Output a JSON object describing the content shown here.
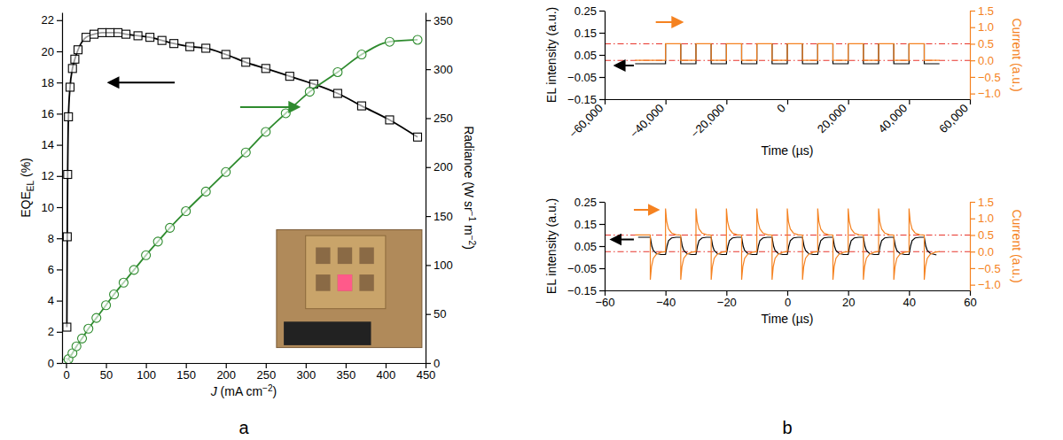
{
  "chart_data": [
    {
      "type": "scatter",
      "title": "a",
      "xlabel": "J (mA cm−2)",
      "ylabel": "EQEEL (%)",
      "y2label": "Radiance (W sr−1 m−2)",
      "xlim": [
        -5,
        450
      ],
      "xticks": [
        0,
        50,
        100,
        150,
        200,
        250,
        300,
        350,
        400,
        450
      ],
      "ylim": [
        0,
        22.5
      ],
      "yticks": [
        0,
        2,
        4,
        6,
        8,
        10,
        12,
        14,
        16,
        18,
        20,
        22
      ],
      "y2lim": [
        0,
        358
      ],
      "y2ticks": [
        0,
        50,
        100,
        150,
        200,
        250,
        300,
        350
      ],
      "grid": false,
      "series": [
        {
          "color": "#000000",
          "marker": "square",
          "line_style": "solid",
          "x": [
            1,
            1.5,
            2,
            3,
            5,
            8,
            11,
            15,
            25,
            35,
            45,
            55,
            65,
            75,
            90,
            105,
            120,
            135,
            155,
            175,
            200,
            225,
            250,
            280,
            310,
            340,
            370,
            405,
            440
          ],
          "values": [
            2.3,
            8.1,
            12.1,
            15.8,
            17.7,
            18.9,
            19.5,
            20.1,
            20.9,
            21.1,
            21.2,
            21.2,
            21.2,
            21.1,
            21.0,
            20.9,
            20.7,
            20.5,
            20.3,
            20.2,
            19.8,
            19.3,
            18.9,
            18.4,
            17.9,
            17.3,
            16.5,
            15.6,
            14.5
          ]
        },
        {
          "color": "#2e8b2e",
          "marker": "circle",
          "line_style": "solid",
          "axis": "y2",
          "x": [
            0,
            3,
            8,
            13,
            20,
            28,
            38,
            50,
            60,
            72,
            85,
            100,
            115,
            130,
            150,
            175,
            200,
            225,
            250,
            275,
            305,
            340,
            370,
            405,
            440
          ],
          "values": [
            0,
            4,
            10,
            17,
            25,
            35,
            46,
            59,
            70,
            82,
            95,
            110,
            124,
            138,
            155,
            175,
            195,
            215,
            236,
            255,
            277,
            297,
            315,
            328,
            330
          ]
        }
      ]
    },
    {
      "type": "line",
      "xlabel": "Time (µs)",
      "ylabel": "EL intensity (a.u.)",
      "y2label": "Current (a.u.)",
      "xlim": [
        -60000,
        60000
      ],
      "xticks": [
        {
          "value": -60000,
          "label": "−60,000"
        },
        {
          "value": -40000,
          "label": "−40,000"
        },
        {
          "value": -20000,
          "label": "−20,000"
        },
        0,
        {
          "value": 20000,
          "label": "20,000"
        },
        {
          "value": 40000,
          "label": "40,000"
        },
        {
          "value": 60000,
          "label": "60,000"
        }
      ],
      "ylim": [
        -0.15,
        0.25
      ],
      "yticks": [
        {
          "value": -0.15,
          "label": "−0.15"
        },
        {
          "value": -0.05,
          "label": "−0.05"
        },
        0.05,
        0.15,
        0.25
      ],
      "y2lim": [
        -1.17,
        1.5
      ],
      "y2ticks": [
        {
          "value": -1,
          "label": "−1.0"
        },
        {
          "value": -0.5,
          "label": "−0.5"
        },
        {
          "value": 0,
          "label": "0.0"
        },
        0.5,
        {
          "value": 1,
          "label": "1.0"
        },
        1.5
      ],
      "grid": false,
      "hlines": [
        {
          "value": 0.5,
          "axis": "y2",
          "color": "#e8352b",
          "line_style": "dashdot"
        },
        {
          "value": 0,
          "axis": "y2",
          "color": "#e8352b",
          "line_style": "dashdot"
        }
      ],
      "series": [
        {
          "color": "#000000",
          "marker": "none",
          "line_style": "solid",
          "x": [
            -50000,
            -40000,
            -40000,
            -35000,
            -35000,
            -30000,
            -30000,
            -25000,
            -25000,
            -20000,
            -20000,
            -15000,
            -15000,
            -10000,
            -10000,
            -5000,
            -5000,
            0,
            0,
            5000,
            5000,
            10000,
            10000,
            15000,
            15000,
            20000,
            20000,
            25000,
            25000,
            30000,
            30000,
            35000,
            35000,
            40000,
            40000,
            45000,
            45000,
            50000
          ],
          "values": [
            0.01,
            0.01,
            0.1,
            0.1,
            0.01,
            0.01,
            0.1,
            0.1,
            0.01,
            0.01,
            0.1,
            0.1,
            0.01,
            0.01,
            0.1,
            0.1,
            0.01,
            0.01,
            0.1,
            0.1,
            0.01,
            0.01,
            0.1,
            0.1,
            0.01,
            0.01,
            0.1,
            0.1,
            0.01,
            0.01,
            0.1,
            0.1,
            0.01,
            0.01,
            0.1,
            0.1,
            0.01,
            0.01
          ]
        },
        {
          "color": "#f58220",
          "marker": "none",
          "line_style": "solid",
          "axis": "y2",
          "x": [
            -50000,
            -40000,
            -40000,
            -35000,
            -35000,
            -30000,
            -30000,
            -25000,
            -25000,
            -20000,
            -20000,
            -15000,
            -15000,
            -10000,
            -10000,
            -5000,
            -5000,
            0,
            0,
            5000,
            5000,
            10000,
            10000,
            15000,
            15000,
            20000,
            20000,
            25000,
            25000,
            30000,
            30000,
            35000,
            35000,
            40000,
            40000,
            45000,
            45000,
            50000
          ],
          "values": [
            0,
            0,
            0.5,
            0.5,
            0,
            0,
            0.5,
            0.5,
            0,
            0,
            0.5,
            0.5,
            0,
            0,
            0.5,
            0.5,
            0,
            0,
            0.5,
            0.5,
            0,
            0,
            0.5,
            0.5,
            0,
            0,
            0.5,
            0.5,
            0,
            0,
            0.5,
            0.5,
            0,
            0,
            0.5,
            0.5,
            0,
            0
          ]
        }
      ]
    },
    {
      "type": "line",
      "title": "b",
      "xlabel": "Time (µs)",
      "ylabel": "EL intensity (a.u.)",
      "y2label": "Current (a.u.)",
      "xlim": [
        -60,
        60
      ],
      "xticks": [
        {
          "value": -60,
          "label": "−60"
        },
        {
          "value": -40,
          "label": "−40"
        },
        {
          "value": -20,
          "label": "−20"
        },
        0,
        20,
        40,
        60
      ],
      "ylim": [
        -0.15,
        0.25
      ],
      "yticks": [
        {
          "value": -0.15,
          "label": "−0.15"
        },
        {
          "value": -0.05,
          "label": "−0.05"
        },
        0.05,
        0.15,
        0.25
      ],
      "y2lim": [
        -1.17,
        1.5
      ],
      "y2ticks": [
        {
          "value": -1,
          "label": "−1.0"
        },
        {
          "value": -0.5,
          "label": "−0.5"
        },
        {
          "value": 0,
          "label": "0.0"
        },
        0.5,
        {
          "value": 1,
          "label": "1.0"
        },
        1.5
      ],
      "grid": false,
      "hlines": [
        {
          "value": 0.5,
          "axis": "y2",
          "color": "#e8352b",
          "line_style": "dashdot"
        },
        {
          "value": 0,
          "axis": "y2",
          "color": "#e8352b",
          "line_style": "dashdot"
        }
      ],
      "series": [
        {
          "color": "#000000",
          "marker": "none",
          "line_style": "solid",
          "x": [
            -49,
            -45,
            -44.5,
            -44,
            -43,
            -41.5,
            -40,
            -39.5,
            -39,
            -38,
            -36.5,
            -35,
            -34.5,
            -34,
            -33,
            -31.5,
            -30,
            -29.5,
            -29,
            -28,
            -26.5,
            -25,
            -24.5,
            -24,
            -23,
            -21.5,
            -20,
            -19.5,
            -19,
            -18,
            -16.5,
            -15,
            -14.5,
            -14,
            -13,
            -11.5,
            -10,
            -9.5,
            -9,
            -8,
            -6.5,
            -5,
            -4.5,
            -4,
            -3,
            -1.5,
            0,
            0.5,
            1,
            2,
            3.5,
            5,
            5.5,
            6,
            7,
            8.5,
            10,
            10.5,
            11,
            12,
            13.5,
            15,
            15.5,
            16,
            17,
            18.5,
            20,
            20.5,
            21,
            22,
            23.5,
            25,
            25.5,
            26,
            27,
            28.5,
            30,
            30.5,
            31,
            32,
            33.5,
            35,
            35.5,
            36,
            37,
            38.5,
            40,
            40.5,
            41,
            42,
            43.5,
            45,
            45.5,
            46,
            47,
            48.5,
            49
          ],
          "values": [
            0.09,
            0.09,
            0.05,
            0.03,
            0.017,
            0.012,
            0.012,
            0.05,
            0.075,
            0.087,
            0.09,
            0.09,
            0.05,
            0.03,
            0.017,
            0.012,
            0.012,
            0.05,
            0.075,
            0.087,
            0.09,
            0.09,
            0.05,
            0.03,
            0.017,
            0.012,
            0.012,
            0.05,
            0.075,
            0.087,
            0.09,
            0.09,
            0.05,
            0.03,
            0.017,
            0.012,
            0.012,
            0.05,
            0.075,
            0.087,
            0.09,
            0.09,
            0.05,
            0.03,
            0.017,
            0.012,
            0.012,
            0.05,
            0.075,
            0.087,
            0.09,
            0.09,
            0.05,
            0.03,
            0.017,
            0.012,
            0.012,
            0.05,
            0.075,
            0.087,
            0.09,
            0.09,
            0.05,
            0.03,
            0.017,
            0.012,
            0.012,
            0.05,
            0.075,
            0.087,
            0.09,
            0.09,
            0.05,
            0.03,
            0.017,
            0.012,
            0.012,
            0.05,
            0.075,
            0.087,
            0.09,
            0.09,
            0.05,
            0.03,
            0.017,
            0.012,
            0.012,
            0.05,
            0.075,
            0.087,
            0.09,
            0.09,
            0.05,
            0.03,
            0.017,
            0.012,
            0.01
          ]
        },
        {
          "color": "#f58220",
          "marker": "none",
          "line_style": "solid",
          "axis": "y2",
          "x": [
            -50,
            -45,
            -45,
            -44.6,
            -44,
            -43,
            -41.5,
            -40,
            -40,
            -39.6,
            -39,
            -38,
            -36.5,
            -35,
            -35,
            -34.6,
            -34,
            -33,
            -31.5,
            -30,
            -30,
            -29.6,
            -29,
            -28,
            -26.5,
            -25,
            -25,
            -24.6,
            -24,
            -23,
            -21.5,
            -20,
            -20,
            -19.6,
            -19,
            -18,
            -16.5,
            -15,
            -15,
            -14.6,
            -14,
            -13,
            -11.5,
            -10,
            -10,
            -9.6,
            -9,
            -8,
            -6.5,
            -5,
            -5,
            -4.6,
            -4,
            -3,
            -1.5,
            0,
            0,
            0.4,
            1,
            2,
            3.5,
            5,
            5,
            5.4,
            6,
            7,
            8.5,
            10,
            10,
            10.4,
            11,
            12,
            13.5,
            15,
            15,
            15.4,
            16,
            17,
            18.5,
            20,
            20,
            20.4,
            21,
            22,
            23.5,
            25,
            25,
            25.4,
            26,
            27,
            28.5,
            30,
            30,
            30.4,
            31,
            32,
            33.5,
            35,
            35,
            35.4,
            36,
            37,
            38.5,
            40,
            40,
            40.4,
            41,
            42,
            43.5,
            45,
            45,
            45.4,
            46,
            47,
            48.5,
            50
          ],
          "values": [
            0.5,
            0.5,
            -0.85,
            -0.45,
            -0.2,
            -0.08,
            -0.02,
            0,
            1.3,
            0.9,
            0.68,
            0.56,
            0.51,
            0.5,
            -0.85,
            -0.45,
            -0.2,
            -0.08,
            -0.02,
            0,
            1.3,
            0.9,
            0.68,
            0.56,
            0.51,
            0.5,
            -0.85,
            -0.45,
            -0.2,
            -0.08,
            -0.02,
            0,
            1.3,
            0.9,
            0.68,
            0.56,
            0.51,
            0.5,
            -0.85,
            -0.45,
            -0.2,
            -0.08,
            -0.02,
            0,
            1.3,
            0.9,
            0.68,
            0.56,
            0.51,
            0.5,
            -0.85,
            -0.45,
            -0.2,
            -0.08,
            -0.02,
            0,
            1.3,
            0.9,
            0.68,
            0.56,
            0.51,
            0.5,
            -0.85,
            -0.45,
            -0.2,
            -0.08,
            -0.02,
            0,
            1.3,
            0.9,
            0.68,
            0.56,
            0.51,
            0.5,
            -0.85,
            -0.45,
            -0.2,
            -0.08,
            -0.02,
            0,
            1.3,
            0.9,
            0.68,
            0.56,
            0.51,
            0.5,
            -0.85,
            -0.45,
            -0.2,
            -0.08,
            -0.02,
            0,
            1.3,
            0.9,
            0.68,
            0.56,
            0.51,
            0.5,
            -0.85,
            -0.45,
            -0.2,
            -0.08,
            -0.02,
            0,
            1.3,
            0.9,
            0.68,
            0.56,
            0.51,
            0.5,
            -0.85,
            -0.45,
            -0.2,
            -0.08,
            -0.02,
            0
          ]
        }
      ]
    }
  ]
}
